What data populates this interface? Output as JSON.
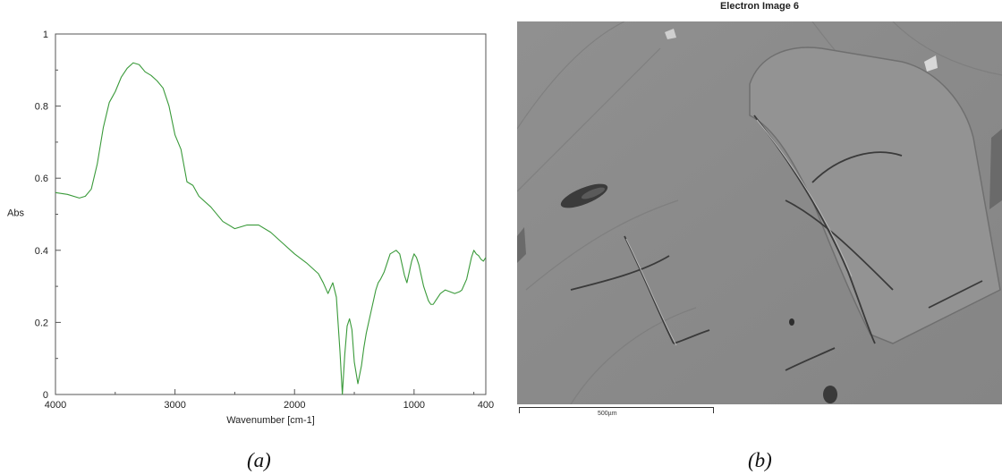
{
  "chart_data": {
    "type": "line",
    "title": "",
    "xlabel": "Wavenumber [cm-1]",
    "ylabel": "Abs",
    "xlim": [
      4000,
      400
    ],
    "ylim": [
      0,
      1
    ],
    "x_ticks": [
      4000,
      3000,
      2000,
      1000,
      400
    ],
    "y_ticks": [
      0,
      0.2,
      0.4,
      0.6,
      0.8,
      1
    ],
    "y_tick_labels": [
      "0",
      "0.2",
      "0.4",
      "0.6",
      "0.8",
      "1"
    ],
    "grid": false,
    "line_color": "#3a9a3a",
    "series": [
      {
        "x": [
          4000,
          3900,
          3800,
          3750,
          3700,
          3650,
          3600,
          3550,
          3500,
          3450,
          3400,
          3350,
          3300,
          3250,
          3200,
          3150,
          3100,
          3050,
          3000,
          2950,
          2900,
          2850,
          2800,
          2700,
          2600,
          2500,
          2400,
          2300,
          2200,
          2100,
          2000,
          1900,
          1800,
          1760,
          1720,
          1680,
          1650,
          1620,
          1600,
          1580,
          1560,
          1540,
          1520,
          1500,
          1470,
          1440,
          1420,
          1400,
          1380,
          1360,
          1340,
          1320,
          1300,
          1280,
          1250,
          1200,
          1150,
          1120,
          1100,
          1080,
          1060,
          1040,
          1020,
          1000,
          980,
          960,
          940,
          920,
          900,
          880,
          860,
          840,
          820,
          800,
          780,
          740,
          700,
          660,
          620,
          600,
          560,
          520,
          500,
          480,
          460,
          440,
          420,
          400
        ],
        "y": [
          0.56,
          0.555,
          0.545,
          0.55,
          0.57,
          0.64,
          0.74,
          0.81,
          0.84,
          0.88,
          0.905,
          0.92,
          0.915,
          0.895,
          0.885,
          0.87,
          0.85,
          0.8,
          0.72,
          0.68,
          0.59,
          0.58,
          0.55,
          0.52,
          0.48,
          0.46,
          0.47,
          0.47,
          0.45,
          0.42,
          0.39,
          0.365,
          0.335,
          0.31,
          0.28,
          0.31,
          0.27,
          0.12,
          0.0,
          0.11,
          0.19,
          0.21,
          0.18,
          0.09,
          0.03,
          0.08,
          0.13,
          0.17,
          0.2,
          0.23,
          0.26,
          0.29,
          0.31,
          0.32,
          0.34,
          0.39,
          0.4,
          0.39,
          0.36,
          0.33,
          0.31,
          0.34,
          0.37,
          0.39,
          0.38,
          0.36,
          0.33,
          0.3,
          0.28,
          0.26,
          0.25,
          0.25,
          0.26,
          0.27,
          0.28,
          0.29,
          0.285,
          0.28,
          0.285,
          0.29,
          0.32,
          0.38,
          0.4,
          0.39,
          0.385,
          0.375,
          0.37,
          0.38
        ]
      }
    ]
  },
  "sem": {
    "title": "Electron Image 6",
    "scale_label": "500µm"
  },
  "captions": {
    "a": "(a)",
    "b": "(b)"
  }
}
